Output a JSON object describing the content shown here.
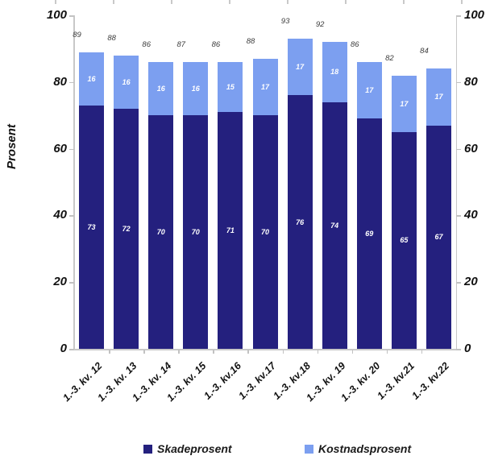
{
  "chart_data": {
    "type": "bar",
    "stacked": true,
    "title": "",
    "ylabel": "Prosent",
    "ylim": [
      0,
      100
    ],
    "yticks": [
      0,
      20,
      40,
      60,
      80,
      100
    ],
    "dual_y_axis": true,
    "grid": false,
    "legend_position": "bottom",
    "categories": [
      "1.-3. kv. 12",
      "1.-3. kv. 13",
      "1.-3. kv. 14",
      "1.-3. kv. 15",
      "1.-3. kv.16",
      "1.-3. kv.17",
      "1.-3. kv.18",
      "1.-3. kv. 19",
      "1.-3. kv. 20",
      "1.-3. kv.21",
      "1.-3. kv.22"
    ],
    "series": [
      {
        "name": "Skadeprosent",
        "color": "#24207e",
        "values": [
          73,
          72,
          70,
          70,
          71,
          70,
          76,
          74,
          69,
          65,
          67
        ]
      },
      {
        "name": "Kostnadsprosent",
        "color": "#7c9ff0",
        "values": [
          16,
          16,
          16,
          16,
          15,
          17,
          17,
          18,
          17,
          17,
          17
        ]
      }
    ],
    "totals": [
      89,
      88,
      86,
      87,
      86,
      88,
      93,
      92,
      86,
      82,
      84
    ]
  },
  "colors": {
    "axis": "#c8c8c8",
    "segment_label": "#ffffff",
    "total_label": "#3a3a3a",
    "background": "#ffffff"
  }
}
